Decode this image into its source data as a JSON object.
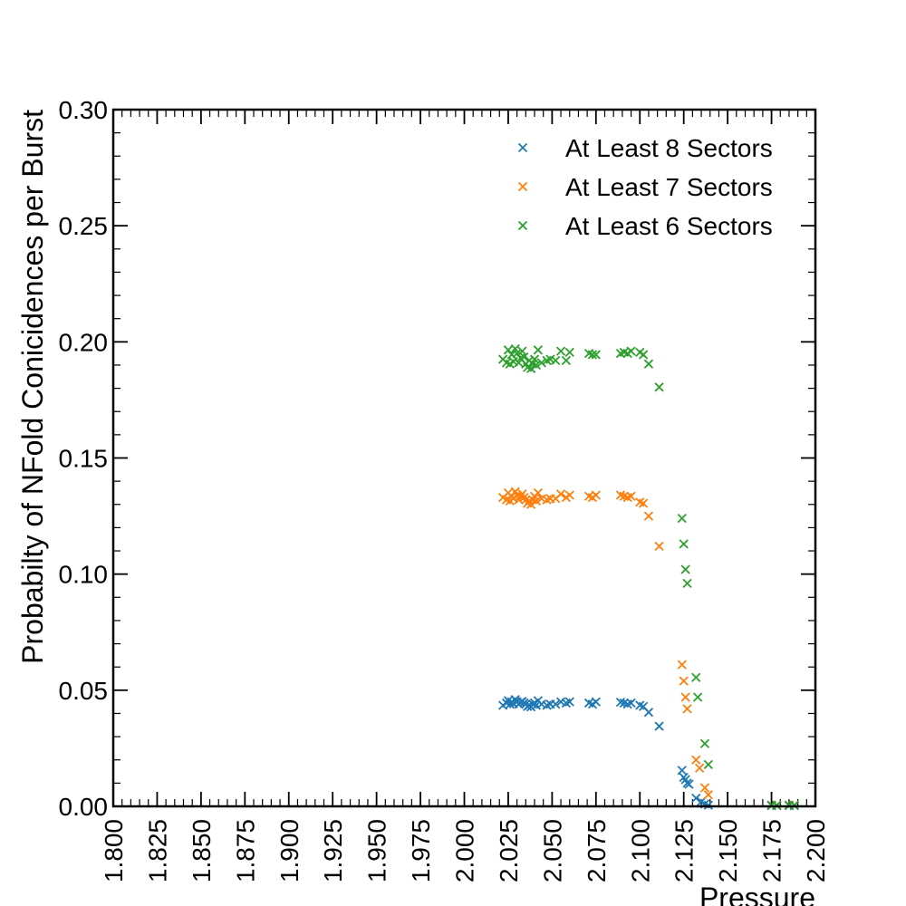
{
  "chart_data": {
    "type": "scatter",
    "xlabel": "Pressure",
    "ylabel": "Probabilty of NFold Conicidences per Burst",
    "xlim": [
      1.8,
      2.2
    ],
    "ylim": [
      0.0,
      0.3
    ],
    "xticks": [
      "1.800",
      "1.825",
      "1.850",
      "1.875",
      "1.900",
      "1.925",
      "1.950",
      "1.975",
      "2.000",
      "2.025",
      "2.050",
      "2.075",
      "2.100",
      "2.125",
      "2.150",
      "2.175",
      "2.200"
    ],
    "yticks": [
      "0.00",
      "0.05",
      "0.10",
      "0.15",
      "0.20",
      "0.25",
      "0.30"
    ],
    "grid": false,
    "legend_position": "top-right",
    "series": [
      {
        "name": "At Least 8 Sectors",
        "color": "#1f77b4",
        "marker": "x",
        "x": [
          2.022,
          2.024,
          2.025,
          2.026,
          2.027,
          2.028,
          2.029,
          2.03,
          2.031,
          2.032,
          2.033,
          2.034,
          2.035,
          2.036,
          2.037,
          2.038,
          2.039,
          2.04,
          2.041,
          2.042,
          2.044,
          2.047,
          2.049,
          2.052,
          2.055,
          2.058,
          2.06,
          2.071,
          2.073,
          2.075,
          2.089,
          2.091,
          2.093,
          2.095,
          2.1,
          2.102,
          2.105,
          2.111,
          2.124,
          2.125,
          2.126,
          2.127,
          2.128,
          2.132,
          2.135,
          2.137,
          2.139,
          2.175,
          2.178,
          2.185,
          2.188
        ],
        "y": [
          0.0435,
          0.0445,
          0.0455,
          0.044,
          0.045,
          0.0442,
          0.046,
          0.045,
          0.044,
          0.0448,
          0.0452,
          0.0445,
          0.044,
          0.043,
          0.0435,
          0.0428,
          0.044,
          0.0445,
          0.0435,
          0.0455,
          0.044,
          0.0435,
          0.044,
          0.044,
          0.045,
          0.0445,
          0.045,
          0.0445,
          0.044,
          0.045,
          0.0448,
          0.0445,
          0.044,
          0.0445,
          0.0435,
          0.043,
          0.0405,
          0.0345,
          0.0155,
          0.0125,
          0.0115,
          0.01,
          0.0095,
          0.0035,
          0.002,
          0.001,
          0.0005,
          0.0003,
          0.0003,
          0.0003,
          0.0003
        ]
      },
      {
        "name": "At Least 7 Sectors",
        "color": "#ff7f0e",
        "marker": "x",
        "x": [
          2.022,
          2.024,
          2.025,
          2.026,
          2.027,
          2.028,
          2.029,
          2.03,
          2.031,
          2.032,
          2.033,
          2.034,
          2.035,
          2.036,
          2.037,
          2.038,
          2.039,
          2.04,
          2.041,
          2.042,
          2.044,
          2.047,
          2.049,
          2.052,
          2.055,
          2.058,
          2.06,
          2.071,
          2.073,
          2.075,
          2.089,
          2.091,
          2.093,
          2.095,
          2.1,
          2.102,
          2.105,
          2.111,
          2.124,
          2.125,
          2.126,
          2.127,
          2.132,
          2.134,
          2.137,
          2.139,
          2.175,
          2.178,
          2.185,
          2.188
        ],
        "y": [
          0.133,
          0.132,
          0.135,
          0.1315,
          0.1335,
          0.1325,
          0.1355,
          0.134,
          0.132,
          0.1335,
          0.1345,
          0.133,
          0.132,
          0.1305,
          0.1315,
          0.13,
          0.132,
          0.1335,
          0.1315,
          0.135,
          0.1325,
          0.132,
          0.1325,
          0.1325,
          0.1345,
          0.133,
          0.134,
          0.1335,
          0.133,
          0.134,
          0.134,
          0.1335,
          0.133,
          0.1335,
          0.131,
          0.1305,
          0.125,
          0.112,
          0.061,
          0.054,
          0.047,
          0.042,
          0.02,
          0.0165,
          0.008,
          0.005,
          0.0005,
          0.0005,
          0.0005,
          0.0005
        ]
      },
      {
        "name": "At Least 6 Sectors",
        "color": "#2ca02c",
        "marker": "x",
        "x": [
          2.022,
          2.024,
          2.025,
          2.026,
          2.027,
          2.028,
          2.029,
          2.03,
          2.031,
          2.032,
          2.033,
          2.034,
          2.035,
          2.036,
          2.037,
          2.038,
          2.039,
          2.04,
          2.041,
          2.042,
          2.044,
          2.047,
          2.049,
          2.052,
          2.055,
          2.058,
          2.06,
          2.071,
          2.073,
          2.075,
          2.089,
          2.091,
          2.093,
          2.095,
          2.1,
          2.102,
          2.105,
          2.111,
          2.124,
          2.125,
          2.126,
          2.127,
          2.132,
          2.133,
          2.137,
          2.139,
          2.175,
          2.178,
          2.185,
          2.188
        ],
        "y": [
          0.1925,
          0.191,
          0.1965,
          0.1905,
          0.1945,
          0.1915,
          0.197,
          0.195,
          0.191,
          0.193,
          0.196,
          0.1935,
          0.1905,
          0.189,
          0.192,
          0.1885,
          0.1905,
          0.1925,
          0.19,
          0.1965,
          0.191,
          0.192,
          0.1925,
          0.192,
          0.196,
          0.192,
          0.1955,
          0.195,
          0.1945,
          0.1945,
          0.195,
          0.1955,
          0.195,
          0.196,
          0.1955,
          0.1945,
          0.1905,
          0.1805,
          0.124,
          0.113,
          0.102,
          0.096,
          0.0555,
          0.047,
          0.027,
          0.018,
          0.0005,
          0.0005,
          0.0005,
          0.0005
        ]
      }
    ]
  }
}
